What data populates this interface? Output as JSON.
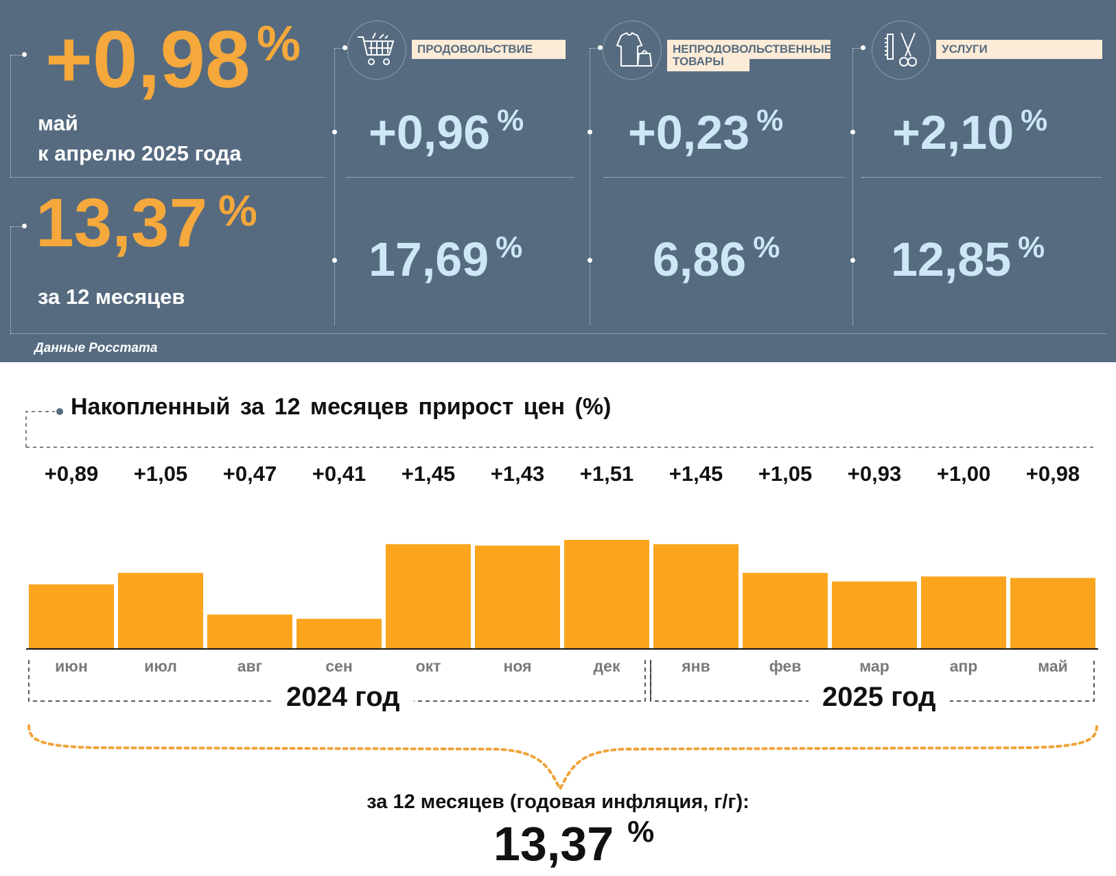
{
  "header": {
    "monthly_value": "+0,98",
    "monthly_pct": "%",
    "monthly_label_1": "май",
    "monthly_label_2": "к апрелю 2025 года",
    "annual_value": "13,37",
    "annual_pct": "%",
    "annual_label": "за 12 месяцев",
    "source": "Данные Росстата"
  },
  "categories": [
    {
      "label_1": "ПРОДОВОЛЬСТВИЕ",
      "label_2": "",
      "icon": "shopping-cart-icon",
      "monthly": "+0,96",
      "annual": "17,69",
      "pct": "%"
    },
    {
      "label_1": "НЕПРОДОВОЛЬСТВЕННЫЕ",
      "label_2": "ТОВАРЫ",
      "icon": "clothing-bag-icon",
      "monthly": "+0,23",
      "annual": "6,86",
      "pct": "%"
    },
    {
      "label_1": "УСЛУГИ",
      "label_2": "",
      "icon": "comb-scissors-icon",
      "monthly": "+2,10",
      "annual": "12,85",
      "pct": "%"
    }
  ],
  "chart_data": {
    "type": "bar",
    "title": "Накопленный за 12 месяцев прирост цен (%)",
    "categories": [
      "июн",
      "июл",
      "авг",
      "сен",
      "окт",
      "ноя",
      "дек",
      "янв",
      "фев",
      "мар",
      "апр",
      "май"
    ],
    "values": [
      0.89,
      1.05,
      0.47,
      0.41,
      1.45,
      1.43,
      1.51,
      1.45,
      1.05,
      0.93,
      1.0,
      0.98
    ],
    "value_labels": [
      "+0,89",
      "+1,05",
      "+0,47",
      "+0,41",
      "+1,45",
      "+1,43",
      "+1,51",
      "+1,45",
      "+1,05",
      "+0,93",
      "+1,00",
      "+0,98"
    ],
    "groups": [
      {
        "label": "2024 год",
        "months": [
          "июн",
          "июл",
          "авг",
          "сен",
          "окт",
          "ноя",
          "дек"
        ]
      },
      {
        "label": "2025 год",
        "months": [
          "янв",
          "фев",
          "мар",
          "апр",
          "май"
        ]
      }
    ],
    "ylim": [
      0,
      1.51
    ],
    "xlabel": "",
    "ylabel": "",
    "grid": false,
    "bar_color": "#fba51f"
  },
  "annual_summary": {
    "caption": "за 12 месяцев (годовая инфляция, г/г):",
    "value": "13,37",
    "pct": "%"
  },
  "colors": {
    "panel": "#566b80",
    "accent": "#f5a83b",
    "light_blue": "#cde7f6",
    "bar": "#fba51f"
  }
}
